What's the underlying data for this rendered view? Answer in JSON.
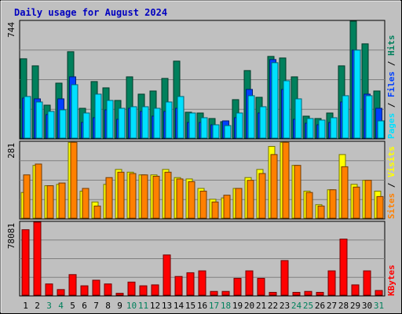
{
  "chart_data": {
    "type": "bar",
    "title": "Daily usage for August 2024",
    "colors": {
      "background": "#c0c0c0",
      "title": "#0000c0",
      "hits": "#00805c",
      "files": "#0040ff",
      "pages": "#00e0ff",
      "visits": "#ffff00",
      "sites": "#ff8000",
      "kbytes": "#ff0000",
      "weekday_label": "#000000",
      "weekend_label": "#00805c"
    },
    "days": [
      "1",
      "2",
      "3",
      "4",
      "5",
      "6",
      "7",
      "8",
      "9",
      "10",
      "11",
      "12",
      "13",
      "14",
      "15",
      "16",
      "17",
      "18",
      "19",
      "20",
      "21",
      "22",
      "23",
      "24",
      "25",
      "26",
      "27",
      "28",
      "29",
      "30",
      "31"
    ],
    "weekend_days": [
      "3",
      "4",
      "10",
      "11",
      "17",
      "18",
      "24",
      "25",
      "31"
    ],
    "panels": [
      {
        "id": "traffic",
        "ymax_label": "744",
        "ymax": 744,
        "series": [
          {
            "name": "Hits",
            "values": [
              505,
              460,
              210,
              350,
              550,
              190,
              360,
              320,
              240,
              390,
              280,
              300,
              380,
              490,
              165,
              160,
              125,
              105,
              245,
              430,
              260,
              520,
              510,
              390,
              140,
              125,
              160,
              460,
              744,
              600,
              300
            ]
          },
          {
            "name": "Files",
            "values": [
              255,
              250,
              150,
              250,
              390,
              100,
              130,
              180,
              120,
              190,
              170,
              140,
              170,
              190,
              100,
              100,
              85,
              110,
              130,
              310,
              160,
              500,
              310,
              120,
              95,
              85,
              100,
              230,
              560,
              280,
              190
            ]
          },
          {
            "name": "Pages",
            "values": [
              265,
              230,
              170,
              180,
              340,
              160,
              280,
              240,
              190,
              200,
              200,
              190,
              230,
              265,
              160,
              130,
              85,
              80,
              160,
              270,
              200,
              480,
              365,
              250,
              125,
              115,
              130,
              270,
              560,
              270,
              110
            ]
          }
        ],
        "legend": [
          "Pages",
          "Files",
          "Hits"
        ]
      },
      {
        "id": "visitors",
        "ymax_label": "281",
        "ymax": 281,
        "series": [
          {
            "name": "Visits",
            "values": [
              95,
              195,
              120,
              125,
              280,
              100,
              60,
              125,
              180,
              170,
              160,
              160,
              180,
              150,
              145,
              110,
              70,
              75,
              110,
              150,
              180,
              265,
              280,
              195,
              100,
              50,
              105,
              235,
              125,
              140,
              100
            ]
          },
          {
            "name": "Sites",
            "values": [
              160,
              200,
              120,
              130,
              280,
              110,
              45,
              150,
              170,
              165,
              160,
              155,
              170,
              145,
              135,
              100,
              60,
              85,
              110,
              140,
              165,
              235,
              280,
              195,
              95,
              45,
              105,
              190,
              115,
              140,
              80
            ]
          }
        ],
        "legend": [
          "Sites",
          "Visits"
        ]
      },
      {
        "id": "kbytes",
        "ymax_label": "78081",
        "ymax": 78081,
        "series": [
          {
            "name": "KBytes",
            "values": [
              70000,
              78081,
              12000,
              6000,
              22000,
              10000,
              16000,
              12000,
              2000,
              14000,
              10000,
              11000,
              43000,
              20000,
              24000,
              26000,
              4000,
              4000,
              18000,
              26000,
              18000,
              3000,
              37000,
              3000,
              4000,
              3000,
              26000,
              60000,
              11000,
              26000,
              5000
            ]
          }
        ],
        "legend": [
          "KBytes"
        ]
      }
    ],
    "legend_separator": "/"
  }
}
